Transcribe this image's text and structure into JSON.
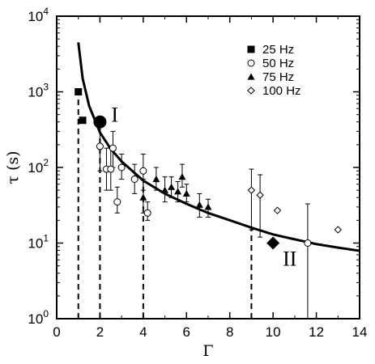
{
  "chart_data": {
    "type": "scatter",
    "x_axis": {
      "label": "Γ",
      "range": [
        0,
        14
      ],
      "ticks": [
        "0",
        "2",
        "4",
        "6",
        "8",
        "10",
        "12",
        "14"
      ]
    },
    "y_axis": {
      "label": "τ (s)",
      "scale": "log",
      "range": [
        1,
        10000
      ],
      "ticks": [
        {
          "base": "10",
          "exp": "0"
        },
        {
          "base": "10",
          "exp": "1"
        },
        {
          "base": "10",
          "exp": "2"
        },
        {
          "base": "10",
          "exp": "3"
        },
        {
          "base": "10",
          "exp": "4"
        }
      ]
    },
    "grid": false,
    "legend_position": "top-right",
    "series": [
      {
        "name": "25 Hz",
        "marker": "filled-square",
        "points": [
          {
            "x": 1.0,
            "y": 1000
          },
          {
            "x": 1.2,
            "y": 420
          }
        ]
      },
      {
        "name": "50 Hz",
        "marker": "open-circle",
        "points": [
          {
            "x": 2.0,
            "y": 190,
            "ylo": 90,
            "yhi": 400
          },
          {
            "x": 2.3,
            "y": 95,
            "ylo": 50,
            "yhi": 180
          },
          {
            "x": 2.5,
            "y": 95,
            "ylo": 50,
            "yhi": 180
          },
          {
            "x": 2.6,
            "y": 180,
            "ylo": 100,
            "yhi": 300
          },
          {
            "x": 2.8,
            "y": 35,
            "ylo": 25,
            "yhi": 55
          },
          {
            "x": 3.0,
            "y": 100,
            "ylo": 70,
            "yhi": 150
          },
          {
            "x": 3.6,
            "y": 70,
            "ylo": 45,
            "yhi": 110
          },
          {
            "x": 4.0,
            "y": 90,
            "ylo": 50,
            "yhi": 150
          },
          {
            "x": 4.2,
            "y": 25,
            "ylo": 20,
            "yhi": 35
          },
          {
            "x": 11.6,
            "y": 10,
            "ylo": 1,
            "yhi": 33
          }
        ]
      },
      {
        "name": "75 Hz",
        "marker": "filled-triangle",
        "points": [
          {
            "x": 4.0,
            "y": 40,
            "ylo": 25,
            "yhi": 70
          },
          {
            "x": 4.6,
            "y": 70,
            "ylo": 50,
            "yhi": 100
          },
          {
            "x": 5.0,
            "y": 50,
            "ylo": 35,
            "yhi": 75
          },
          {
            "x": 5.3,
            "y": 55,
            "ylo": 40,
            "yhi": 75
          },
          {
            "x": 5.6,
            "y": 48,
            "ylo": 35,
            "yhi": 65
          },
          {
            "x": 5.8,
            "y": 75,
            "ylo": 55,
            "yhi": 110
          },
          {
            "x": 6.0,
            "y": 45,
            "ylo": 35,
            "yhi": 60
          },
          {
            "x": 6.6,
            "y": 32,
            "ylo": 22,
            "yhi": 45
          },
          {
            "x": 7.0,
            "y": 30,
            "ylo": 22,
            "yhi": 38
          }
        ]
      },
      {
        "name": "100 Hz",
        "marker": "open-diamond",
        "points": [
          {
            "x": 9.0,
            "y": 50,
            "ylo": 15,
            "yhi": 95
          },
          {
            "x": 9.4,
            "y": 43,
            "ylo": 12,
            "yhi": 80
          },
          {
            "x": 10.2,
            "y": 27
          },
          {
            "x": 13.0,
            "y": 15
          }
        ]
      }
    ],
    "highlights": [
      {
        "label": "I",
        "marker": "large-filled-circle",
        "x": 2.0,
        "y": 400
      },
      {
        "label": "II",
        "marker": "large-filled-diamond",
        "x": 10.0,
        "y": 10
      }
    ],
    "fit_curve": {
      "points": [
        {
          "x": 1.0,
          "y": 4500
        },
        {
          "x": 1.2,
          "y": 1500
        },
        {
          "x": 1.5,
          "y": 650
        },
        {
          "x": 2.0,
          "y": 290
        },
        {
          "x": 2.5,
          "y": 175
        },
        {
          "x": 3.0,
          "y": 120
        },
        {
          "x": 4.0,
          "y": 67
        },
        {
          "x": 5.0,
          "y": 45
        },
        {
          "x": 6.0,
          "y": 33
        },
        {
          "x": 7.0,
          "y": 25
        },
        {
          "x": 8.0,
          "y": 20
        },
        {
          "x": 9.0,
          "y": 16
        },
        {
          "x": 10.0,
          "y": 13
        },
        {
          "x": 11.0,
          "y": 11.2
        },
        {
          "x": 12.0,
          "y": 9.7
        },
        {
          "x": 13.0,
          "y": 8.7
        },
        {
          "x": 14.0,
          "y": 7.9
        }
      ]
    },
    "dashed_lines": [
      {
        "x": 1.0,
        "y_from": 1,
        "y_to": 1000
      },
      {
        "x": 2.0,
        "y_from": 1,
        "y_to": 400
      },
      {
        "x": 4.0,
        "y_from": 1,
        "y_to": 70
      },
      {
        "x": 9.0,
        "y_from": 1,
        "y_to": 16
      }
    ]
  }
}
